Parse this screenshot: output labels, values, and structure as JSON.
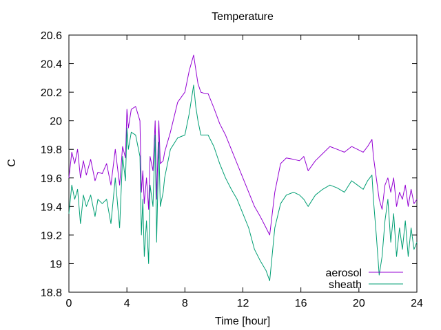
{
  "chart_data": {
    "type": "line",
    "title": "Temperature",
    "xlabel": "Time [hour]",
    "ylabel": "C",
    "xlim": [
      0,
      24
    ],
    "ylim": [
      18.8,
      20.6
    ],
    "xticks": [
      0,
      4,
      8,
      12,
      16,
      20,
      24
    ],
    "yticks": [
      18.8,
      19,
      19.2,
      19.4,
      19.6,
      19.8,
      20,
      20.2,
      20.4,
      20.6
    ],
    "xtick_labels": [
      "0",
      "4",
      "8",
      "12",
      "16",
      "20",
      "24"
    ],
    "ytick_labels": [
      "18.8",
      "19",
      "19.2",
      "19.4",
      "19.6",
      "19.8",
      "20",
      "20.2",
      "20.4",
      "20.6"
    ],
    "grid": false,
    "legend_position": "bottom-right",
    "series": [
      {
        "name": "aerosol",
        "color": "#9400d3",
        "x": [
          0,
          0.2,
          0.4,
          0.6,
          0.8,
          1.0,
          1.2,
          1.5,
          1.8,
          2.0,
          2.3,
          2.6,
          2.9,
          3.2,
          3.5,
          3.7,
          3.9,
          4.0,
          4.1,
          4.3,
          4.6,
          4.9,
          5.0,
          5.1,
          5.2,
          5.35,
          5.5,
          5.6,
          5.8,
          5.95,
          6.05,
          6.2,
          6.3,
          6.5,
          6.6,
          7.0,
          7.5,
          8.0,
          8.3,
          8.6,
          8.75,
          8.9,
          9.1,
          9.4,
          9.6,
          10.0,
          10.4,
          10.8,
          11.2,
          11.6,
          12.0,
          12.4,
          12.8,
          13.2,
          13.6,
          13.85,
          14.2,
          14.6,
          15.0,
          15.5,
          15.9,
          16.2,
          16.5,
          17.0,
          17.5,
          18.0,
          18.5,
          19.0,
          19.5,
          19.9,
          20.3,
          20.6,
          20.9,
          21.0,
          21.2,
          21.4,
          21.6,
          21.8,
          22.0,
          22.2,
          22.4,
          22.6,
          22.8,
          23.0,
          23.2,
          23.4,
          23.6,
          23.8,
          24.0
        ],
        "y": [
          19.6,
          19.78,
          19.7,
          19.8,
          19.6,
          19.72,
          19.62,
          19.73,
          19.58,
          19.64,
          19.63,
          19.7,
          19.55,
          19.8,
          19.55,
          19.82,
          19.74,
          20.08,
          19.95,
          20.08,
          20.1,
          20.0,
          19.5,
          19.65,
          19.42,
          19.6,
          19.38,
          19.75,
          19.65,
          20.0,
          19.45,
          20.0,
          19.7,
          19.72,
          19.78,
          19.92,
          20.13,
          20.2,
          20.35,
          20.46,
          20.36,
          20.26,
          20.2,
          20.19,
          20.19,
          20.09,
          19.98,
          19.9,
          19.8,
          19.7,
          19.6,
          19.5,
          19.4,
          19.33,
          19.25,
          19.2,
          19.5,
          19.7,
          19.74,
          19.73,
          19.72,
          19.75,
          19.65,
          19.72,
          19.77,
          19.82,
          19.8,
          19.78,
          19.82,
          19.8,
          19.78,
          19.82,
          19.87,
          19.75,
          19.6,
          19.45,
          19.38,
          19.55,
          19.6,
          19.5,
          19.6,
          19.4,
          19.5,
          19.45,
          19.55,
          19.4,
          19.52,
          19.42,
          19.45
        ]
      },
      {
        "name": "sheath",
        "color": "#009e73",
        "x": [
          0,
          0.2,
          0.4,
          0.6,
          0.8,
          1.0,
          1.2,
          1.5,
          1.8,
          2.0,
          2.3,
          2.6,
          2.9,
          3.2,
          3.5,
          3.7,
          3.9,
          4.0,
          4.1,
          4.3,
          4.6,
          4.9,
          5.0,
          5.1,
          5.2,
          5.35,
          5.5,
          5.6,
          5.8,
          5.95,
          6.05,
          6.2,
          6.3,
          6.5,
          6.6,
          7.0,
          7.5,
          8.0,
          8.3,
          8.6,
          8.75,
          8.9,
          9.1,
          9.4,
          9.6,
          10.0,
          10.4,
          10.8,
          11.2,
          11.6,
          12.0,
          12.4,
          12.8,
          13.2,
          13.6,
          13.85,
          14.2,
          14.6,
          15.0,
          15.5,
          15.9,
          16.2,
          16.5,
          17.0,
          17.5,
          18.0,
          18.5,
          19.0,
          19.5,
          19.9,
          20.3,
          20.6,
          20.9,
          21.0,
          21.2,
          21.4,
          21.6,
          21.8,
          22.0,
          22.2,
          22.4,
          22.6,
          22.8,
          23.0,
          23.2,
          23.4,
          23.6,
          23.8,
          24.0
        ],
        "y": [
          19.35,
          19.55,
          19.45,
          19.52,
          19.28,
          19.48,
          19.4,
          19.48,
          19.33,
          19.45,
          19.42,
          19.45,
          19.28,
          19.6,
          19.25,
          19.75,
          19.58,
          19.95,
          19.8,
          19.92,
          19.9,
          19.75,
          19.2,
          19.45,
          19.05,
          19.3,
          19.0,
          19.55,
          19.4,
          19.9,
          19.15,
          19.85,
          19.4,
          19.5,
          19.6,
          19.8,
          19.88,
          19.9,
          20.05,
          20.25,
          20.1,
          20.0,
          19.9,
          19.9,
          19.9,
          19.82,
          19.7,
          19.6,
          19.52,
          19.45,
          19.35,
          19.25,
          19.1,
          19.02,
          18.95,
          18.88,
          19.25,
          19.42,
          19.48,
          19.5,
          19.48,
          19.45,
          19.4,
          19.48,
          19.52,
          19.55,
          19.53,
          19.5,
          19.58,
          19.55,
          19.52,
          19.58,
          19.62,
          19.45,
          19.2,
          18.92,
          19.05,
          19.3,
          19.45,
          19.15,
          19.35,
          19.05,
          19.25,
          19.1,
          19.3,
          19.05,
          19.25,
          19.1,
          19.15
        ]
      }
    ]
  }
}
